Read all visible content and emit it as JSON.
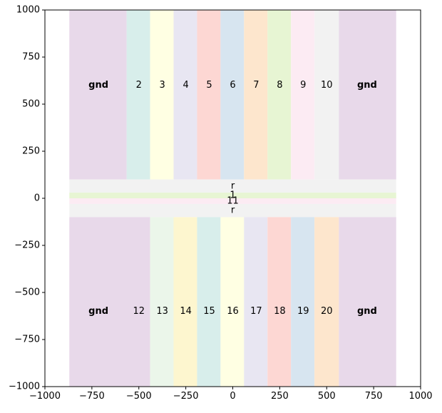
{
  "chart_data": {
    "type": "heatmap",
    "xlim": [
      -1000,
      1000
    ],
    "ylim": [
      -1000,
      1000
    ],
    "x_ticks": [
      -1000,
      -750,
      -500,
      -250,
      0,
      250,
      500,
      750,
      1000
    ],
    "y_ticks": [
      -1000,
      -750,
      -500,
      -250,
      0,
      250,
      500,
      750,
      1000
    ],
    "x_tick_labels": [
      "−1000",
      "−750",
      "−500",
      "−250",
      "0",
      "250",
      "500",
      "750",
      "1000"
    ],
    "y_tick_labels": [
      "−1000",
      "−750",
      "−500",
      "−250",
      "0",
      "250",
      "500",
      "750",
      "1000"
    ],
    "grid": false,
    "regions": [
      {
        "label": "gnd",
        "x": [
          -870,
          -565
        ],
        "y": [
          100,
          1000
        ],
        "color": "#e8d9ea",
        "bold": true,
        "label_pos": [
          -715,
          600
        ]
      },
      {
        "label": "2",
        "x": [
          -565,
          -440
        ],
        "y": [
          100,
          1000
        ],
        "color": "#d8eeeb",
        "label_pos": [
          -500,
          600
        ]
      },
      {
        "label": "3",
        "x": [
          -440,
          -315
        ],
        "y": [
          100,
          1000
        ],
        "color": "#ffffe3",
        "label_pos": [
          -375,
          600
        ]
      },
      {
        "label": "4",
        "x": [
          -315,
          -190
        ],
        "y": [
          100,
          1000
        ],
        "color": "#e8e6f2",
        "label_pos": [
          -250,
          600
        ]
      },
      {
        "label": "5",
        "x": [
          -190,
          -65
        ],
        "y": [
          100,
          1000
        ],
        "color": "#fdd7d3",
        "label_pos": [
          -125,
          600
        ]
      },
      {
        "label": "6",
        "x": [
          -65,
          60
        ],
        "y": [
          100,
          1000
        ],
        "color": "#d7e5f0",
        "label_pos": [
          0,
          600
        ]
      },
      {
        "label": "7",
        "x": [
          60,
          185
        ],
        "y": [
          100,
          1000
        ],
        "color": "#fde6cd",
        "label_pos": [
          125,
          600
        ]
      },
      {
        "label": "8",
        "x": [
          185,
          310
        ],
        "y": [
          100,
          1000
        ],
        "color": "#e7f5d3",
        "label_pos": [
          250,
          600
        ]
      },
      {
        "label": "9",
        "x": [
          310,
          435
        ],
        "y": [
          100,
          1000
        ],
        "color": "#fcebf3",
        "label_pos": [
          375,
          600
        ]
      },
      {
        "label": "10",
        "x": [
          435,
          565
        ],
        "y": [
          100,
          1000
        ],
        "color": "#f2f2f2",
        "label_pos": [
          500,
          600
        ]
      },
      {
        "label": "gnd",
        "x": [
          565,
          870
        ],
        "y": [
          100,
          1000
        ],
        "color": "#e8d9ea",
        "bold": true,
        "label_pos": [
          715,
          600
        ]
      },
      {
        "label": "r",
        "x": [
          -870,
          870
        ],
        "y": [
          30,
          100
        ],
        "color": "#f2f2f2",
        "label_pos": [
          0,
          65
        ]
      },
      {
        "label": "1",
        "x": [
          -870,
          870
        ],
        "y": [
          0,
          30
        ],
        "color": "#e7f5d3",
        "label_pos": [
          0,
          15
        ]
      },
      {
        "label": "11",
        "x": [
          -870,
          870
        ],
        "y": [
          -30,
          0
        ],
        "color": "#fcebf3",
        "label_pos": [
          0,
          -15
        ]
      },
      {
        "label": "r",
        "x": [
          -870,
          870
        ],
        "y": [
          -100,
          -30
        ],
        "color": "#f2f2f2",
        "label_pos": [
          0,
          -65
        ]
      },
      {
        "label": "gnd",
        "x": [
          -870,
          -440
        ],
        "y": [
          -1000,
          -100
        ],
        "color": "#e8d9ea",
        "bold": true,
        "label_pos": [
          -715,
          -600
        ]
      },
      {
        "label": "12",
        "x": [
          -440,
          -440
        ],
        "y": [
          -1000,
          -100
        ],
        "color": "#e8d9ea",
        "label_pos": [
          -500,
          -600
        ]
      },
      {
        "label": "13",
        "x": [
          -440,
          -315
        ],
        "y": [
          -1000,
          -100
        ],
        "color": "#ebf6ea",
        "label_pos": [
          -375,
          -600
        ]
      },
      {
        "label": "14",
        "x": [
          -315,
          -190
        ],
        "y": [
          -1000,
          -100
        ],
        "color": "#fdf6cf",
        "label_pos": [
          -250,
          -600
        ]
      },
      {
        "label": "15",
        "x": [
          -190,
          -65
        ],
        "y": [
          -1000,
          -100
        ],
        "color": "#d8eeeb",
        "label_pos": [
          -125,
          -600
        ]
      },
      {
        "label": "16",
        "x": [
          -65,
          60
        ],
        "y": [
          -1000,
          -100
        ],
        "color": "#ffffe3",
        "label_pos": [
          0,
          -600
        ]
      },
      {
        "label": "17",
        "x": [
          60,
          185
        ],
        "y": [
          -1000,
          -100
        ],
        "color": "#e8e6f2",
        "label_pos": [
          125,
          -600
        ]
      },
      {
        "label": "18",
        "x": [
          185,
          310
        ],
        "y": [
          -1000,
          -100
        ],
        "color": "#fdd7d3",
        "label_pos": [
          250,
          -600
        ]
      },
      {
        "label": "19",
        "x": [
          310,
          435
        ],
        "y": [
          -1000,
          -100
        ],
        "color": "#d7e5f0",
        "label_pos": [
          375,
          -600
        ]
      },
      {
        "label": "20",
        "x": [
          435,
          565
        ],
        "y": [
          -1000,
          -100
        ],
        "color": "#fde6cd",
        "label_pos": [
          500,
          -600
        ]
      },
      {
        "label": "gnd",
        "x": [
          565,
          870
        ],
        "y": [
          -1000,
          -100
        ],
        "color": "#e8d9ea",
        "bold": true,
        "label_pos": [
          715,
          -600
        ]
      }
    ]
  }
}
